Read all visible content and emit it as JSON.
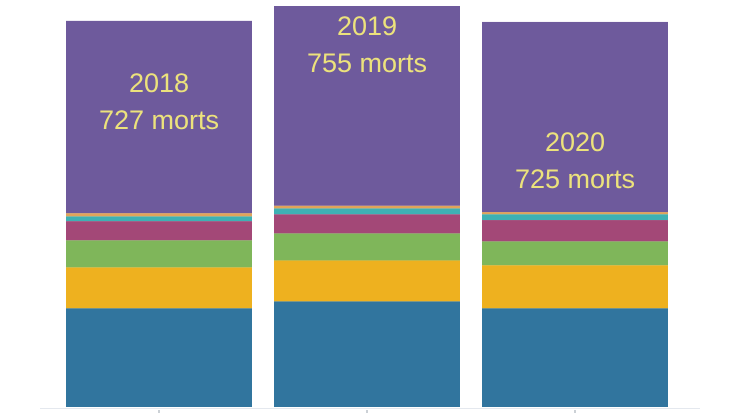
{
  "chart_data": {
    "type": "stacked-bar",
    "categories": [
      "2018",
      "2019",
      "2020"
    ],
    "totals": [
      727,
      755,
      725
    ],
    "total_labels": [
      "727 morts",
      "755 morts",
      "725 morts"
    ],
    "series": [
      {
        "color": "#31759e",
        "values": [
          186,
          199,
          186
        ]
      },
      {
        "color": "#eeb11f",
        "values": [
          77,
          77,
          81
        ]
      },
      {
        "color": "#7fb65a",
        "values": [
          51,
          51,
          45
        ]
      },
      {
        "color": "#a34877",
        "values": [
          36,
          36,
          40
        ]
      },
      {
        "color": "#3eb1b4",
        "values": [
          9,
          11,
          11
        ]
      },
      {
        "color": "#e0a45a",
        "values": [
          6,
          5,
          4
        ]
      },
      {
        "color": "#6e5a9c",
        "values": [
          362,
          376,
          358
        ]
      }
    ]
  }
}
